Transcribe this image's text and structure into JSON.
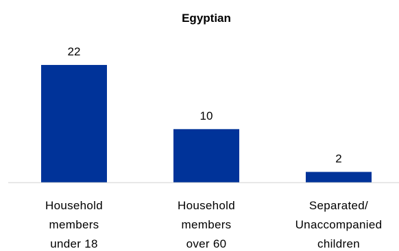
{
  "chart_data": {
    "type": "bar",
    "title": "Egyptian",
    "categories": [
      [
        "Household",
        "members",
        "under 18"
      ],
      [
        "Household",
        "members",
        "over 60"
      ],
      [
        "Separated/",
        "Unaccompanied",
        "children"
      ]
    ],
    "series": [
      {
        "values": [
          22,
          10,
          2
        ],
        "color": "#003399"
      }
    ],
    "data_labels": [
      "22",
      "10",
      "2"
    ],
    "ylim": [
      0,
      25
    ],
    "grid": false,
    "legend": "none"
  }
}
